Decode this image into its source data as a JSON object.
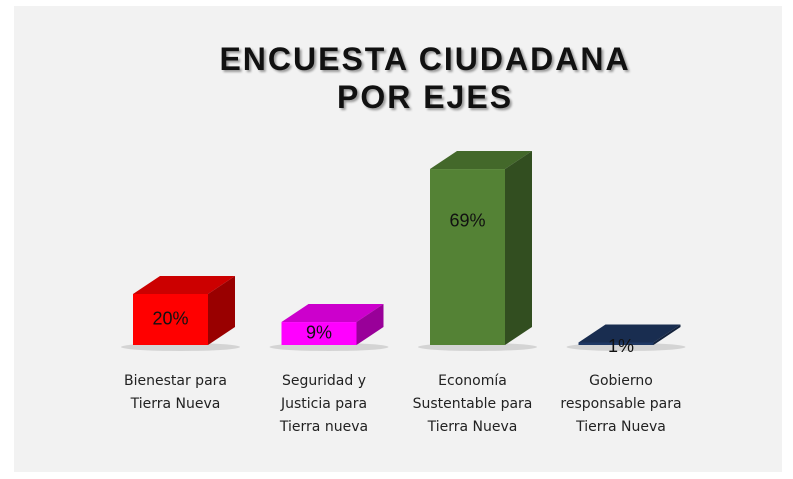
{
  "chart_data": {
    "type": "bar3d",
    "title": "ENCUESTA CIUDADANA POR EJES",
    "categories": [
      "Bienestar para Tierra Nueva",
      "Seguridad y Justicia para Tierra nueva",
      "Economía Sustentable para Tierra Nueva",
      "Gobierno responsable para Tierra Nueva"
    ],
    "values": [
      20,
      9,
      69,
      1
    ],
    "value_labels": [
      "20%",
      "9%",
      "69%",
      "1%"
    ],
    "colors": [
      "#ff0000",
      "#ff00ff",
      "#548235",
      "#1f3864"
    ]
  }
}
